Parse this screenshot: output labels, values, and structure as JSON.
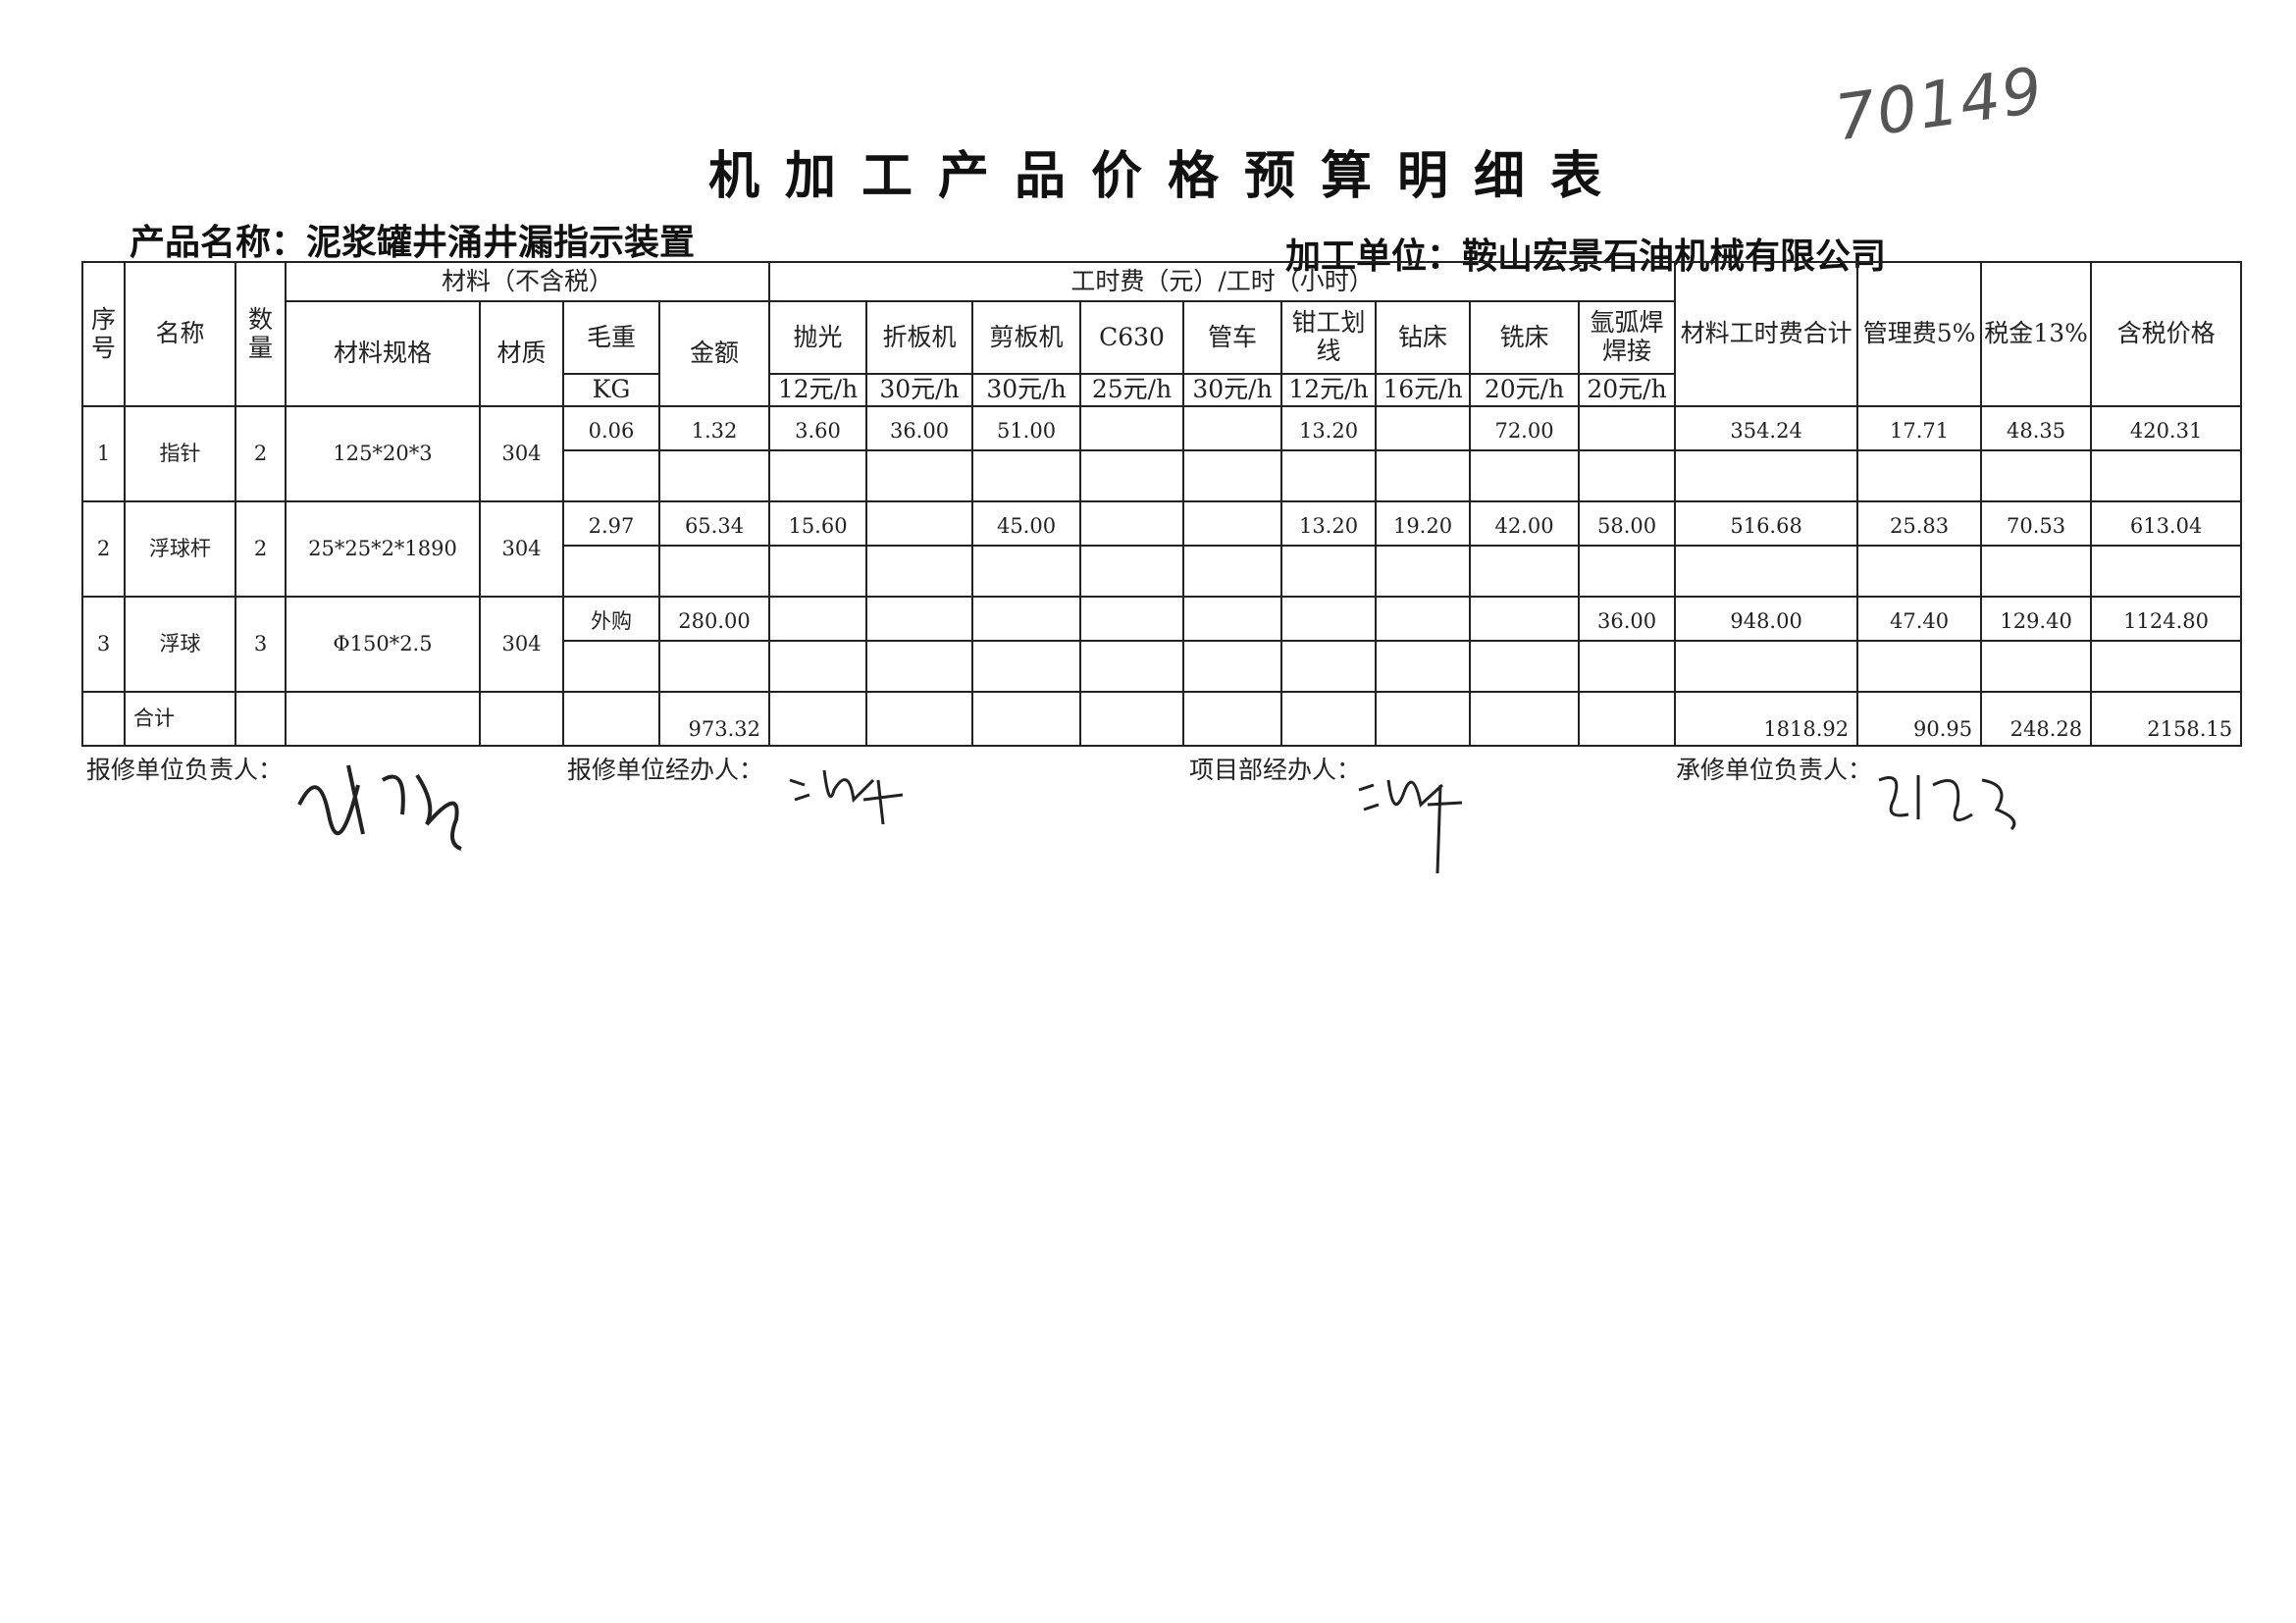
{
  "handwritten_number": "70149",
  "title": "机加工产品价格预算明细表",
  "product_label": "产品名称：泥浆罐井涌井漏指示装置",
  "unit_label": "加工单位：鞍山宏景石油机械有限公司",
  "header": {
    "seq": "序号",
    "name": "名称",
    "qty": "数量",
    "material_group": "材料（不含税）",
    "spec": "材料规格",
    "texture": "材质",
    "weight": "毛重",
    "weight_unit": "KG",
    "amount": "金额",
    "labor_group": "工时费（元）/工时（小时）",
    "labor": [
      {
        "name": "抛光",
        "rate": "12元/h"
      },
      {
        "name": "折板机",
        "rate": "30元/h"
      },
      {
        "name": "剪板机",
        "rate": "30元/h"
      },
      {
        "name": "C630",
        "rate": "25元/h"
      },
      {
        "name": "管车",
        "rate": "30元/h"
      },
      {
        "name": "钳工划线",
        "rate": "12元/h"
      },
      {
        "name": "钻床",
        "rate": "16元/h"
      },
      {
        "name": "铣床",
        "rate": "20元/h"
      },
      {
        "name": "氩弧焊焊接",
        "rate": "20元/h"
      }
    ],
    "subtotal": "材料工时费合计",
    "mgmt": "管理费5%",
    "tax": "税金13%",
    "price": "含税价格"
  },
  "rows": [
    {
      "seq": "1",
      "name": "指针",
      "qty": "2",
      "spec": "125*20*3",
      "texture": "304",
      "weight": "0.06",
      "amount": "1.32",
      "labor": [
        "3.60",
        "36.00",
        "51.00",
        "",
        "",
        "13.20",
        "",
        "72.00",
        ""
      ],
      "subtotal": "354.24",
      "mgmt": "17.71",
      "tax": "48.35",
      "price": "420.31"
    },
    {
      "seq": "2",
      "name": "浮球杆",
      "qty": "2",
      "spec": "25*25*2*1890",
      "texture": "304",
      "weight": "2.97",
      "amount": "65.34",
      "labor": [
        "15.60",
        "",
        "45.00",
        "",
        "",
        "13.20",
        "19.20",
        "42.00",
        "58.00"
      ],
      "subtotal": "516.68",
      "mgmt": "25.83",
      "tax": "70.53",
      "price": "613.04"
    },
    {
      "seq": "3",
      "name": "浮球",
      "qty": "3",
      "spec": "Φ150*2.5",
      "texture": "304",
      "weight": "外购",
      "amount": "280.00",
      "labor": [
        "",
        "",
        "",
        "",
        "",
        "",
        "",
        "",
        "36.00"
      ],
      "subtotal": "948.00",
      "mgmt": "47.40",
      "tax": "129.40",
      "price": "1124.80"
    }
  ],
  "total": {
    "label": "合计",
    "amount": "973.32",
    "subtotal": "1818.92",
    "mgmt": "90.95",
    "tax": "248.28",
    "price": "2158.15"
  },
  "signatures": {
    "repair_head": "报修单位负责人：",
    "repair_handler": "报修单位经办人：",
    "project_handler": "项目部经办人：",
    "contractor_head": "承修单位负责人："
  }
}
